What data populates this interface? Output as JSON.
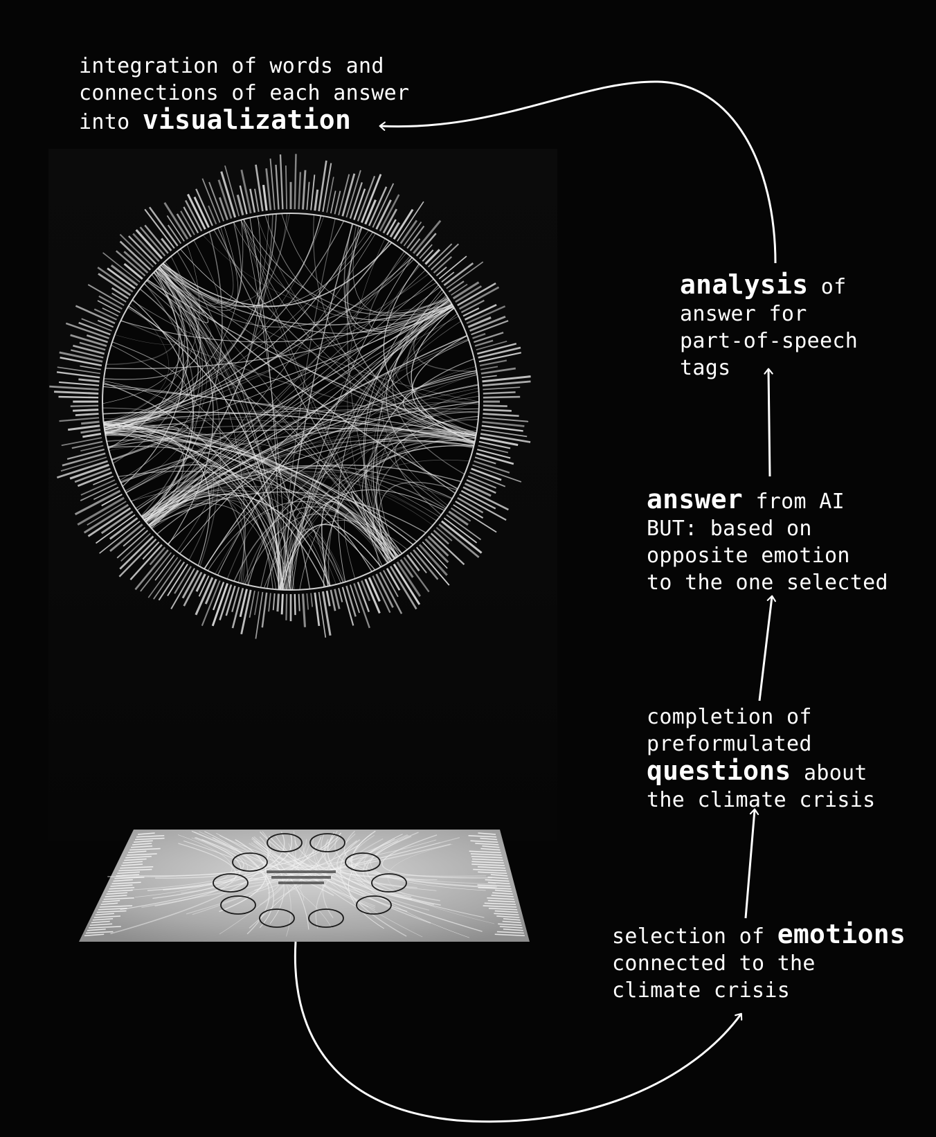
{
  "steps": {
    "visualization": {
      "line1": "integration of words and",
      "line2": "connections of each answer",
      "line3_pre": "into ",
      "line3_bold": "visualization"
    },
    "analysis": {
      "line1_bold": "analysis",
      "line1_post": " of",
      "line2": "answer for",
      "line3": "part-of-speech",
      "line4": "tags"
    },
    "answer": {
      "line1_bold": "answer",
      "line1_post": " from AI",
      "line2": "BUT: based on",
      "line3": "opposite emotion",
      "line4": "to the one selected"
    },
    "questions": {
      "line1": "completion of",
      "line2": "preformulated",
      "line3_bold": "questions",
      "line3_post": " about",
      "line4": "the climate crisis"
    },
    "emotions": {
      "line1_pre": "selection of ",
      "line1_bold": "emotions",
      "line2": "connected to the",
      "line3": "climate crisis"
    }
  },
  "colors": {
    "background": "#050505",
    "text": "#ffffff",
    "arrow": "#ffffff",
    "chord": "#e8e8e8",
    "screen": "#bdbdbd"
  }
}
